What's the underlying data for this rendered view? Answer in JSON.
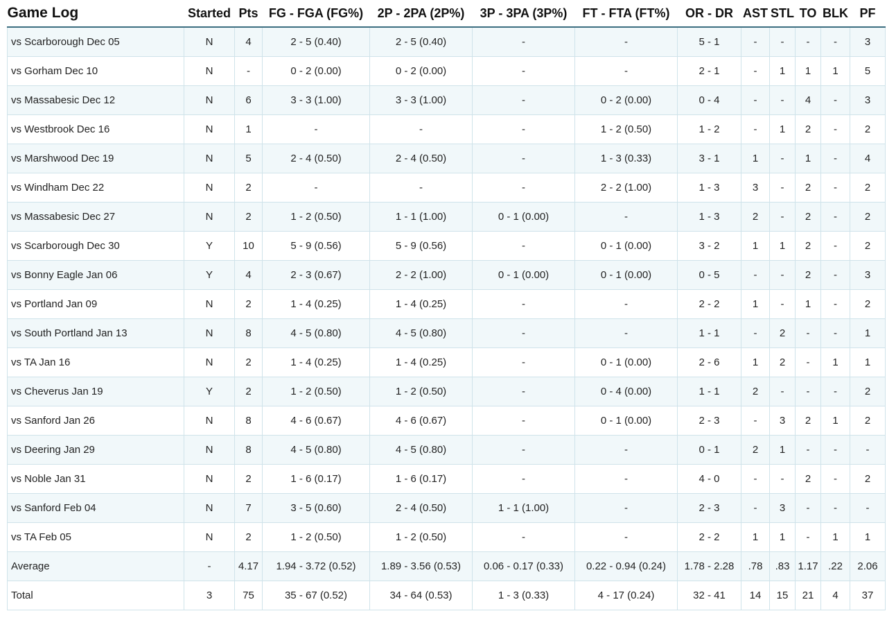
{
  "table": {
    "headers": [
      "Game Log",
      "Started",
      "Pts",
      "FG - FGA (FG%)",
      "2P - 2PA (2P%)",
      "3P - 3PA (3P%)",
      "FT - FTA (FT%)",
      "OR - DR",
      "AST",
      "STL",
      "TO",
      "BLK",
      "PF"
    ],
    "rows": [
      [
        "vs Scarborough Dec 05",
        "N",
        "4",
        "2 - 5 (0.40)",
        "2 - 5 (0.40)",
        "-",
        "-",
        "5 - 1",
        "-",
        "-",
        "-",
        "-",
        "3"
      ],
      [
        "vs Gorham Dec 10",
        "N",
        "-",
        "0 - 2 (0.00)",
        "0 - 2 (0.00)",
        "-",
        "-",
        "2 - 1",
        "-",
        "1",
        "1",
        "1",
        "5"
      ],
      [
        "vs Massabesic Dec 12",
        "N",
        "6",
        "3 - 3 (1.00)",
        "3 - 3 (1.00)",
        "-",
        "0 - 2 (0.00)",
        "0 - 4",
        "-",
        "-",
        "4",
        "-",
        "3"
      ],
      [
        "vs Westbrook Dec 16",
        "N",
        "1",
        "-",
        "-",
        "-",
        "1 - 2 (0.50)",
        "1 - 2",
        "-",
        "1",
        "2",
        "-",
        "2"
      ],
      [
        "vs Marshwood Dec 19",
        "N",
        "5",
        "2 - 4 (0.50)",
        "2 - 4 (0.50)",
        "-",
        "1 - 3 (0.33)",
        "3 - 1",
        "1",
        "-",
        "1",
        "-",
        "4"
      ],
      [
        "vs Windham Dec 22",
        "N",
        "2",
        "-",
        "-",
        "-",
        "2 - 2 (1.00)",
        "1 - 3",
        "3",
        "-",
        "2",
        "-",
        "2"
      ],
      [
        "vs Massabesic Dec 27",
        "N",
        "2",
        "1 - 2 (0.50)",
        "1 - 1 (1.00)",
        "0 - 1 (0.00)",
        "-",
        "1 - 3",
        "2",
        "-",
        "2",
        "-",
        "2"
      ],
      [
        "vs Scarborough Dec 30",
        "Y",
        "10",
        "5 - 9 (0.56)",
        "5 - 9 (0.56)",
        "-",
        "0 - 1 (0.00)",
        "3 - 2",
        "1",
        "1",
        "2",
        "-",
        "2"
      ],
      [
        "vs Bonny Eagle Jan 06",
        "Y",
        "4",
        "2 - 3 (0.67)",
        "2 - 2 (1.00)",
        "0 - 1 (0.00)",
        "0 - 1 (0.00)",
        "0 - 5",
        "-",
        "-",
        "2",
        "-",
        "3"
      ],
      [
        "vs Portland Jan 09",
        "N",
        "2",
        "1 - 4 (0.25)",
        "1 - 4 (0.25)",
        "-",
        "-",
        "2 - 2",
        "1",
        "-",
        "1",
        "-",
        "2"
      ],
      [
        "vs South Portland Jan 13",
        "N",
        "8",
        "4 - 5 (0.80)",
        "4 - 5 (0.80)",
        "-",
        "-",
        "1 - 1",
        "-",
        "2",
        "-",
        "-",
        "1"
      ],
      [
        "vs TA Jan 16",
        "N",
        "2",
        "1 - 4 (0.25)",
        "1 - 4 (0.25)",
        "-",
        "0 - 1 (0.00)",
        "2 - 6",
        "1",
        "2",
        "-",
        "1",
        "1"
      ],
      [
        "vs Cheverus Jan 19",
        "Y",
        "2",
        "1 - 2 (0.50)",
        "1 - 2 (0.50)",
        "-",
        "0 - 4 (0.00)",
        "1 - 1",
        "2",
        "-",
        "-",
        "-",
        "2"
      ],
      [
        "vs Sanford Jan 26",
        "N",
        "8",
        "4 - 6 (0.67)",
        "4 - 6 (0.67)",
        "-",
        "0 - 1 (0.00)",
        "2 - 3",
        "-",
        "3",
        "2",
        "1",
        "2"
      ],
      [
        "vs Deering Jan 29",
        "N",
        "8",
        "4 - 5 (0.80)",
        "4 - 5 (0.80)",
        "-",
        "-",
        "0 - 1",
        "2",
        "1",
        "-",
        "-",
        "-"
      ],
      [
        "vs Noble Jan 31",
        "N",
        "2",
        "1 - 6 (0.17)",
        "1 - 6 (0.17)",
        "-",
        "-",
        "4 - 0",
        "-",
        "-",
        "2",
        "-",
        "2"
      ],
      [
        "vs Sanford Feb 04",
        "N",
        "7",
        "3 - 5 (0.60)",
        "2 - 4 (0.50)",
        "1 - 1 (1.00)",
        "-",
        "2 - 3",
        "-",
        "3",
        "-",
        "-",
        "-"
      ],
      [
        "vs TA Feb 05",
        "N",
        "2",
        "1 - 2 (0.50)",
        "1 - 2 (0.50)",
        "-",
        "-",
        "2 - 2",
        "1",
        "1",
        "-",
        "1",
        "1"
      ],
      [
        "Average",
        "-",
        "4.17",
        "1.94 - 3.72 (0.52)",
        "1.89 - 3.56 (0.53)",
        "0.06 - 0.17 (0.33)",
        "0.22 - 0.94 (0.24)",
        "1.78 - 2.28",
        ".78",
        ".83",
        "1.17",
        ".22",
        "2.06"
      ],
      [
        "Total",
        "3",
        "75",
        "35 - 67 (0.52)",
        "34 - 64 (0.53)",
        "1 - 3 (0.33)",
        "4 - 17 (0.24)",
        "32 - 41",
        "14",
        "15",
        "21",
        "4",
        "37"
      ]
    ]
  }
}
